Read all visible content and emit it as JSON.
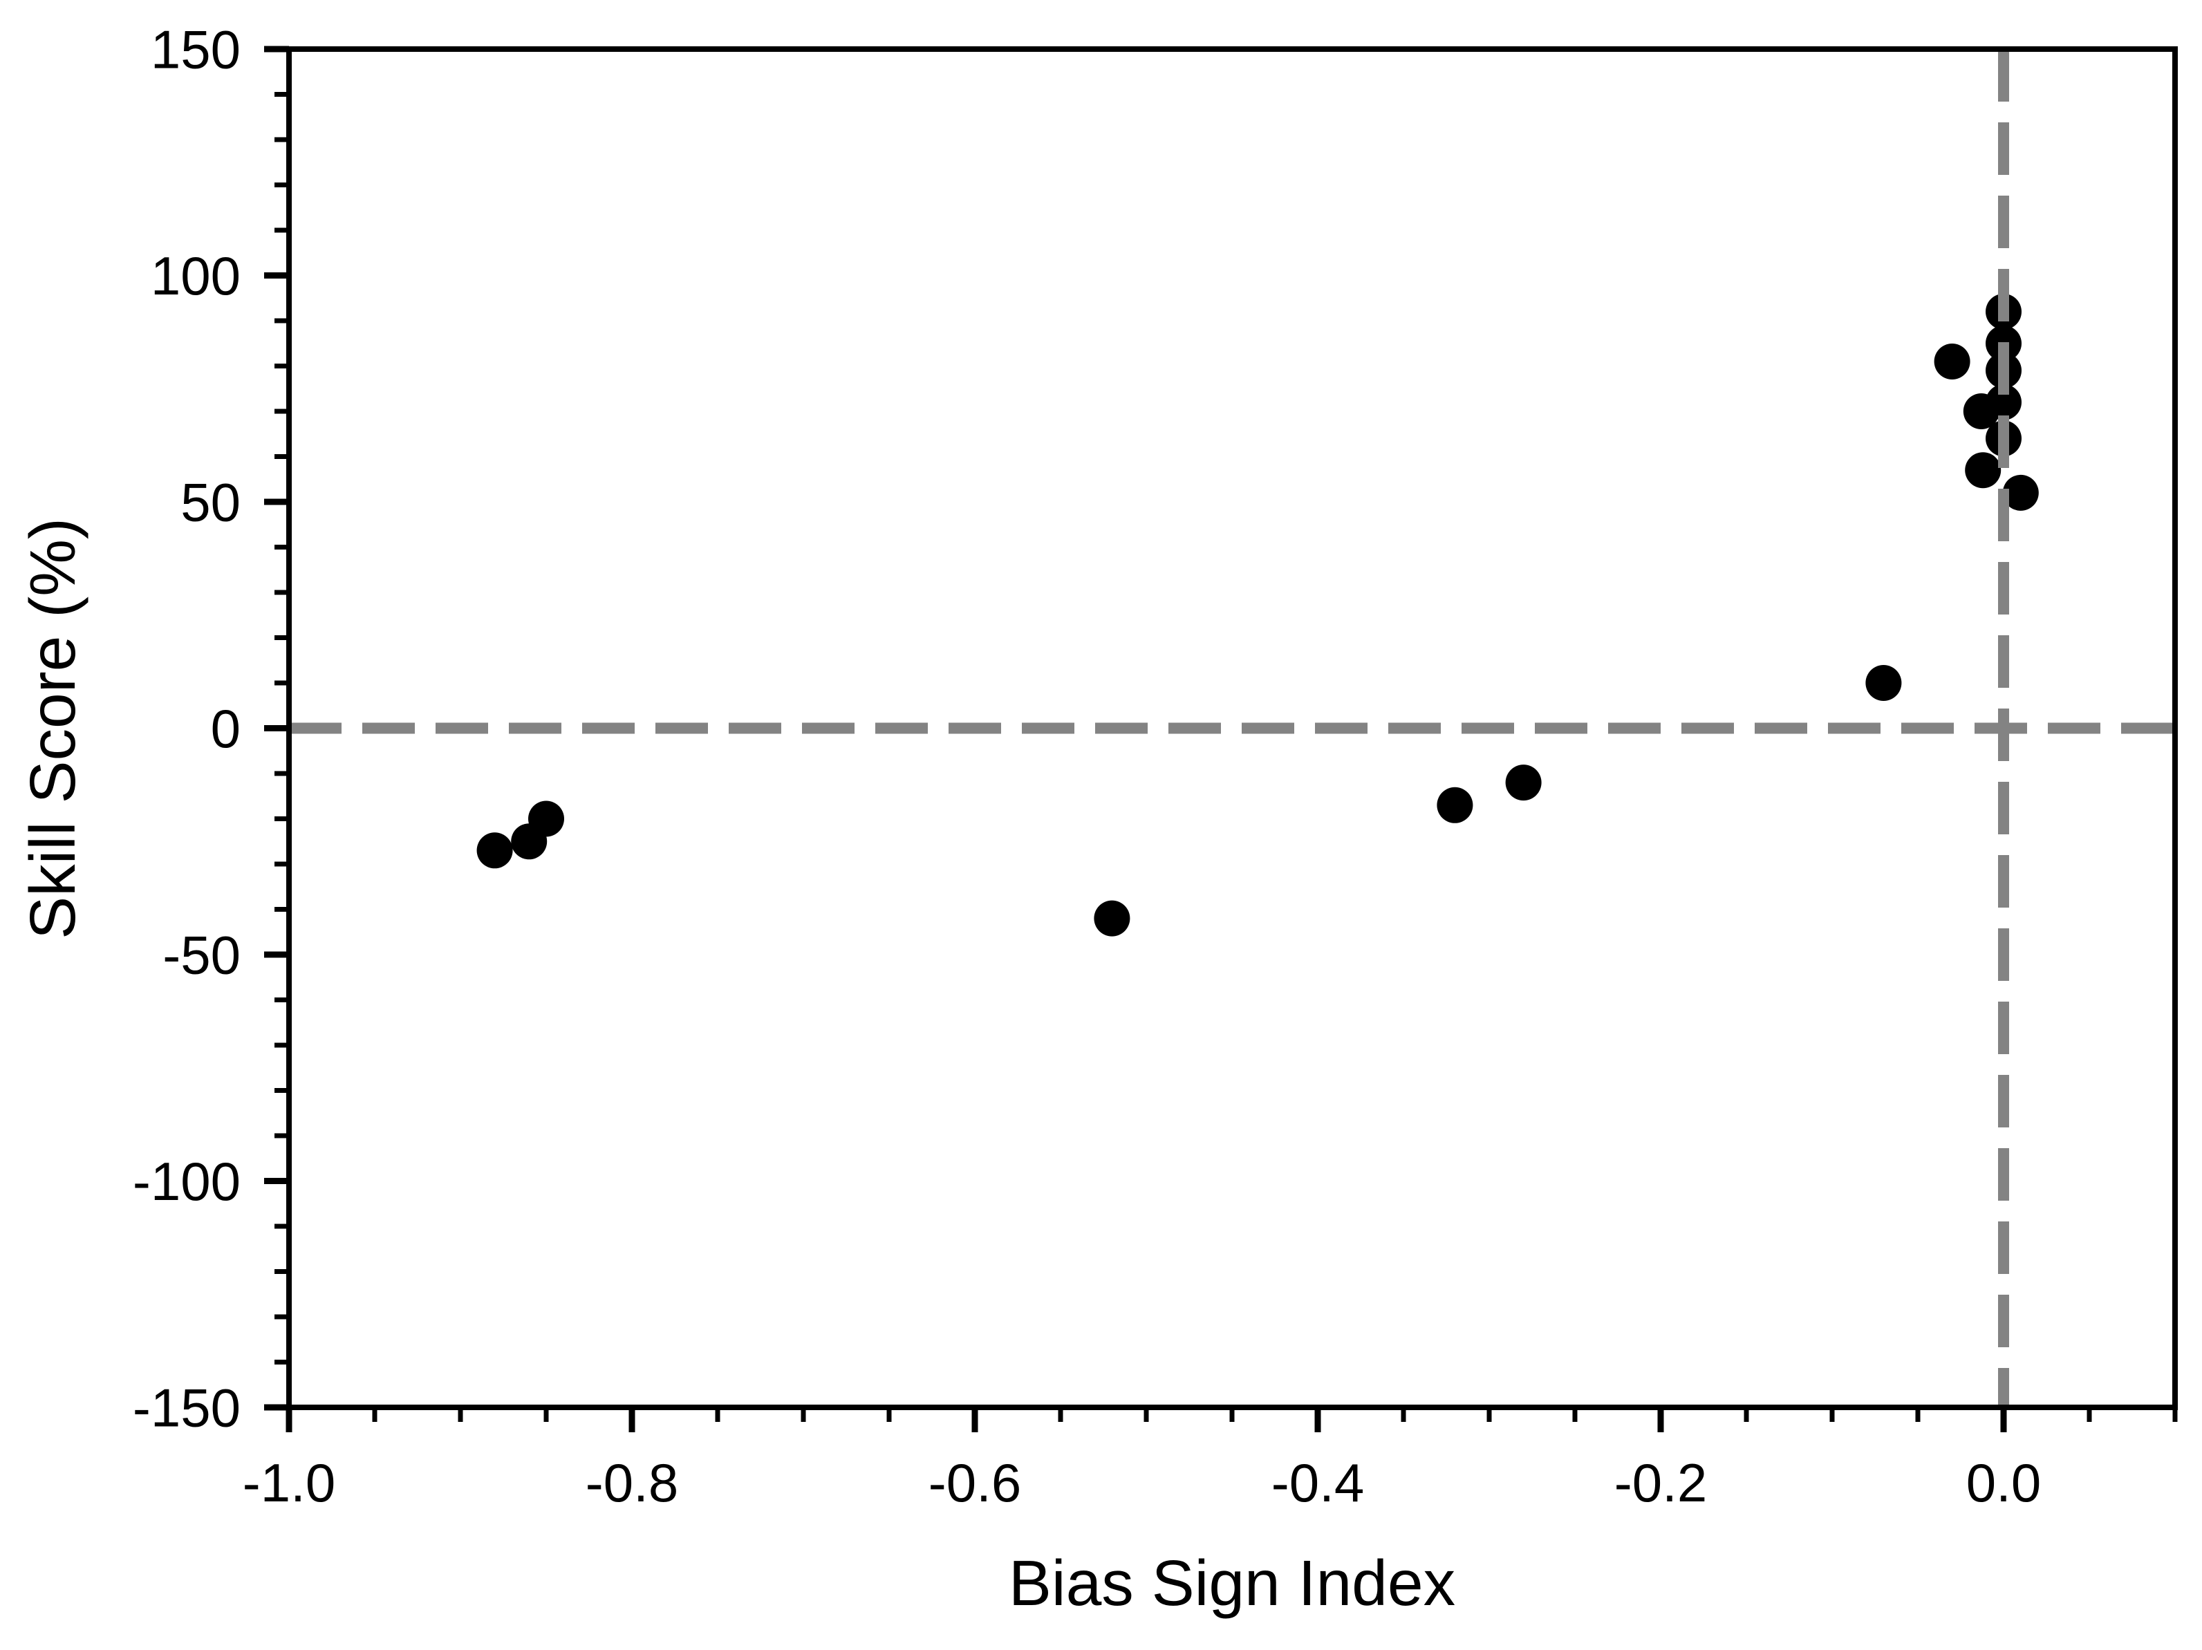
{
  "figure": {
    "background_color": "#ffffff",
    "axis_color": "#000000",
    "reference_line_color": "#838383",
    "marker_color": "#000000"
  },
  "chart_data": {
    "type": "scatter",
    "title": "",
    "xlabel": "Bias Sign Index",
    "ylabel": "Skill Score (%)",
    "xlim": [
      -1.0,
      0.1
    ],
    "ylim": [
      -150,
      150
    ],
    "x_major_ticks": [
      -1.0,
      -0.8,
      -0.6,
      -0.4,
      -0.2,
      0.0
    ],
    "x_tick_labels": [
      "-1.0",
      "-0.8",
      "-0.6",
      "-0.4",
      "-0.2",
      "0.0"
    ],
    "x_minor_step": 0.05,
    "y_major_ticks": [
      -150,
      -100,
      -50,
      0,
      50,
      100,
      150
    ],
    "y_tick_labels": [
      "-150",
      "-100",
      "-50",
      "0",
      "50",
      "100",
      "150"
    ],
    "y_minor_step": 10,
    "grid": false,
    "legend": null,
    "marker": {
      "shape": "circle",
      "color": "#000000",
      "radius_px": 26
    },
    "reference_lines": [
      {
        "axis": "x",
        "value": 0.0,
        "style": "dashed",
        "color": "#838383"
      },
      {
        "axis": "y",
        "value": 0.0,
        "style": "dashed",
        "color": "#838383"
      }
    ],
    "points": [
      {
        "x": -0.88,
        "y": -27
      },
      {
        "x": -0.86,
        "y": -25
      },
      {
        "x": -0.85,
        "y": -20
      },
      {
        "x": -0.52,
        "y": -42
      },
      {
        "x": -0.32,
        "y": -17
      },
      {
        "x": -0.28,
        "y": -12
      },
      {
        "x": -0.07,
        "y": 10
      },
      {
        "x": -0.03,
        "y": 81
      },
      {
        "x": 0.0,
        "y": 92
      },
      {
        "x": 0.0,
        "y": 85
      },
      {
        "x": 0.0,
        "y": 79
      },
      {
        "x": 0.0,
        "y": 72
      },
      {
        "x": -0.013,
        "y": 70
      },
      {
        "x": 0.0,
        "y": 64
      },
      {
        "x": -0.012,
        "y": 57
      },
      {
        "x": 0.01,
        "y": 52
      }
    ]
  }
}
